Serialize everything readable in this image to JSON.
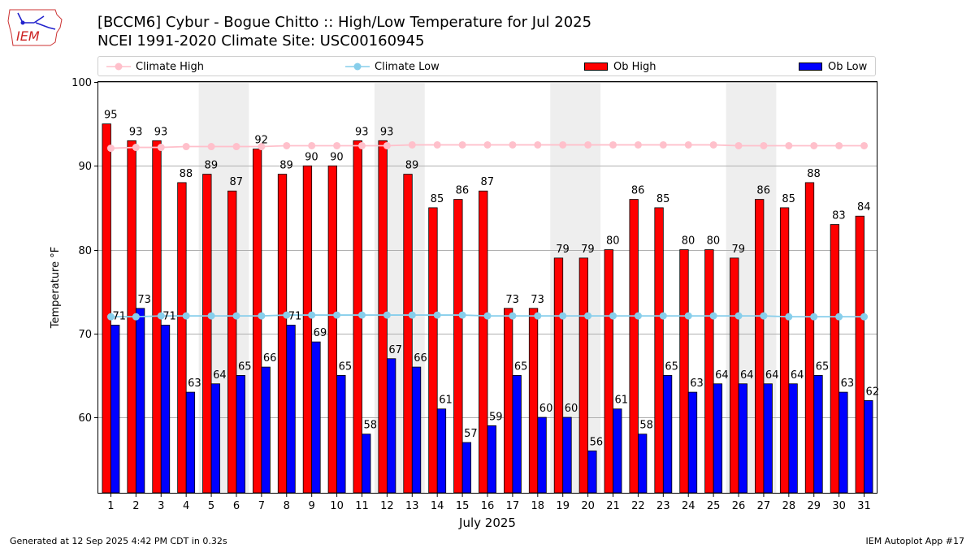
{
  "header": {
    "title_line1": "[BCCM6] Cybur - Bogue Chitto :: High/Low Temperature for Jul 2025",
    "title_line2": "NCEI 1991-2020 Climate Site: USC00160945",
    "logo_text": "IEM"
  },
  "legend": {
    "climate_high": "Climate High",
    "climate_low": "Climate Low",
    "ob_high": "Ob High",
    "ob_low": "Ob Low"
  },
  "colors": {
    "ob_high": "#ff0000",
    "ob_low": "#0000ff",
    "climate_high": "#ffc0cb",
    "climate_low": "#87ceeb",
    "weekend_shade": "#eeeeee"
  },
  "chart_data": {
    "type": "bar",
    "title": "[BCCM6] Cybur - Bogue Chitto :: High/Low Temperature for Jul 2025",
    "xlabel": "July 2025",
    "ylabel": "Temperature °F",
    "ylim": [
      51,
      100
    ],
    "yticks": [
      60,
      70,
      80,
      90,
      100
    ],
    "grid": true,
    "legend_position": "top",
    "categories": [
      "1",
      "2",
      "3",
      "4",
      "5",
      "6",
      "7",
      "8",
      "9",
      "10",
      "11",
      "12",
      "13",
      "14",
      "15",
      "16",
      "17",
      "18",
      "19",
      "20",
      "21",
      "22",
      "23",
      "24",
      "25",
      "26",
      "27",
      "28",
      "29",
      "30",
      "31"
    ],
    "weekend_days": [
      [
        5,
        6
      ],
      [
        12,
        13
      ],
      [
        19,
        20
      ],
      [
        26,
        27
      ]
    ],
    "series": [
      {
        "name": "Ob High",
        "kind": "bar",
        "values": [
          95,
          93,
          93,
          88,
          89,
          87,
          92,
          89,
          90,
          90,
          93,
          93,
          89,
          85,
          86,
          87,
          73,
          73,
          79,
          79,
          80,
          86,
          85,
          80,
          80,
          79,
          86,
          85,
          88,
          83,
          84
        ]
      },
      {
        "name": "Ob Low",
        "kind": "bar",
        "values": [
          71,
          73,
          71,
          63,
          64,
          65,
          66,
          71,
          69,
          65,
          58,
          67,
          66,
          61,
          57,
          59,
          65,
          60,
          60,
          56,
          61,
          58,
          65,
          63,
          64,
          64,
          64,
          64,
          65,
          63,
          62
        ]
      },
      {
        "name": "Climate High",
        "kind": "line",
        "values": [
          92.1,
          92.2,
          92.2,
          92.3,
          92.3,
          92.3,
          92.3,
          92.4,
          92.4,
          92.4,
          92.4,
          92.4,
          92.5,
          92.5,
          92.5,
          92.5,
          92.5,
          92.5,
          92.5,
          92.5,
          92.5,
          92.5,
          92.5,
          92.5,
          92.5,
          92.4,
          92.4,
          92.4,
          92.4,
          92.4,
          92.4
        ]
      },
      {
        "name": "Climate Low",
        "kind": "line",
        "values": [
          72.0,
          72.0,
          72.1,
          72.1,
          72.1,
          72.1,
          72.1,
          72.2,
          72.2,
          72.2,
          72.2,
          72.2,
          72.2,
          72.2,
          72.2,
          72.1,
          72.1,
          72.1,
          72.1,
          72.1,
          72.1,
          72.1,
          72.1,
          72.1,
          72.1,
          72.1,
          72.1,
          72.0,
          72.0,
          72.0,
          72.0
        ]
      }
    ]
  },
  "footer": {
    "generated": "Generated at 12 Sep 2025 4:42 PM CDT in 0.32s",
    "app": "IEM Autoplot App #17"
  }
}
